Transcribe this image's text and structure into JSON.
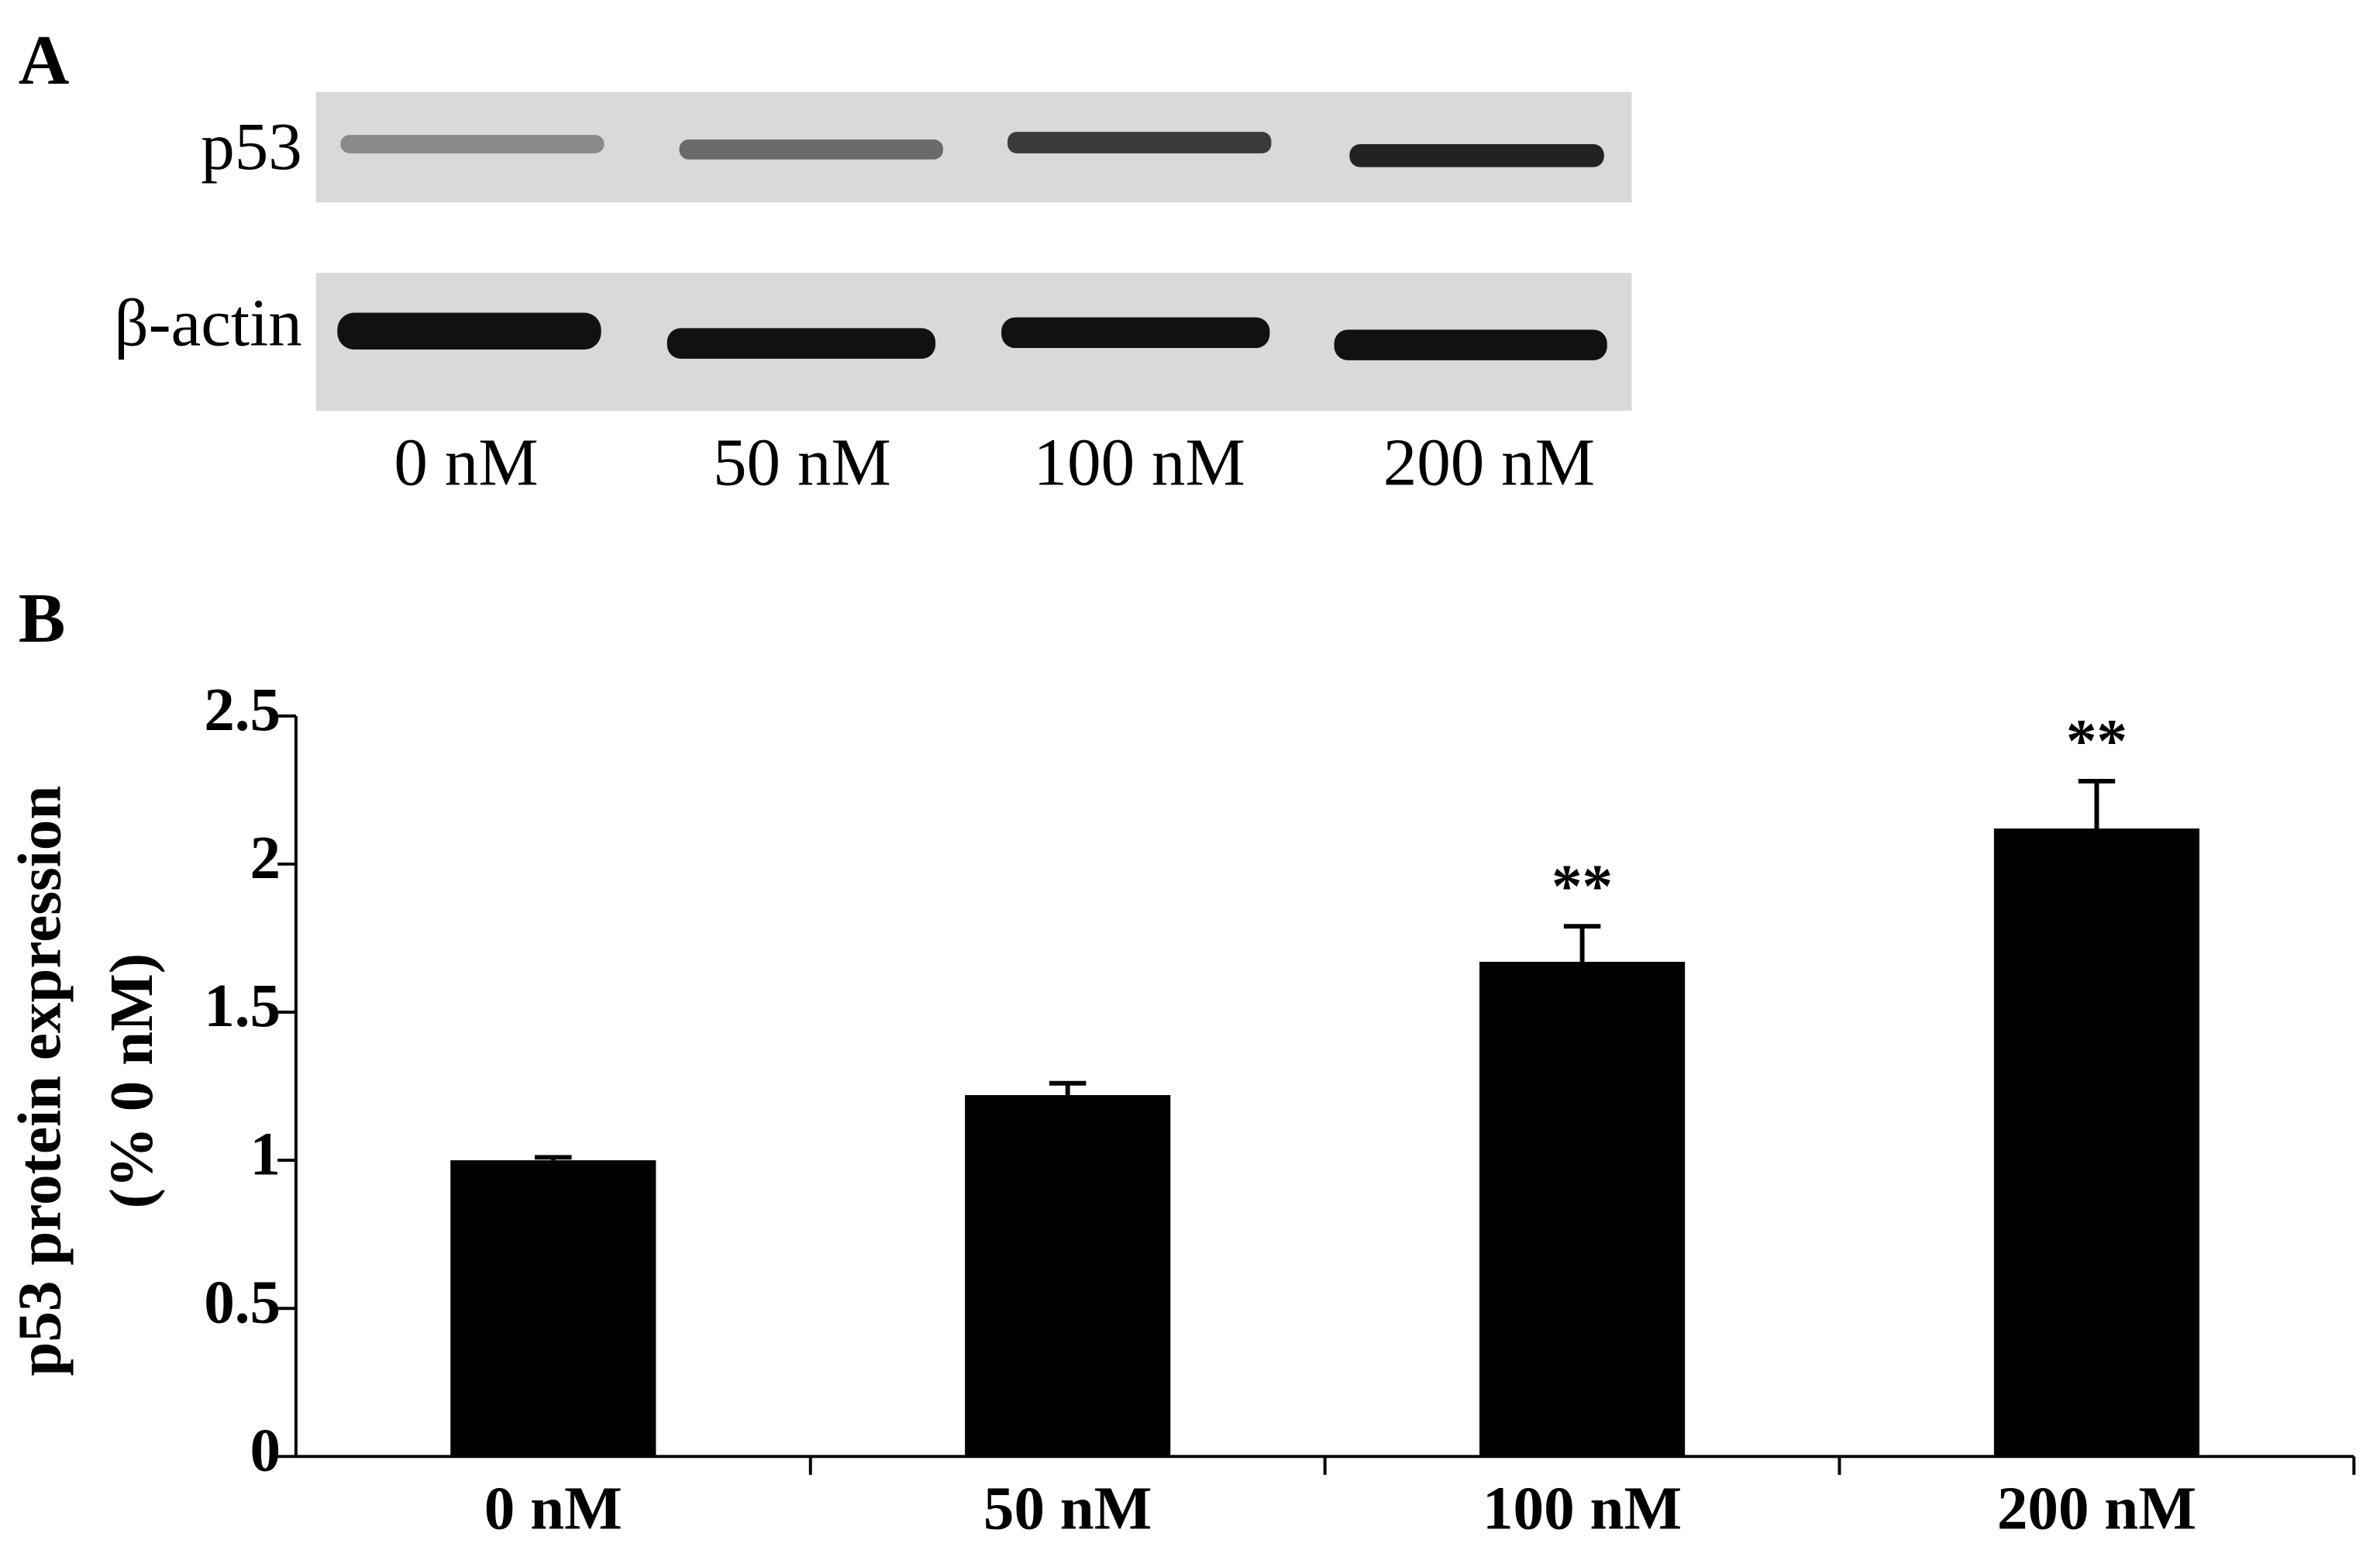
{
  "blot": {
    "panel_label": "A",
    "rows": [
      "p53",
      "β-actin"
    ],
    "lanes": [
      "0 nM",
      "50 nM",
      "100 nM",
      "200 nM"
    ]
  },
  "chart_data": {
    "type": "bar",
    "panel_label": "B",
    "y_label": [
      "p53 protein expression",
      "(% 0  nM)"
    ],
    "categories": [
      "0 nM",
      "50 nM",
      "100 nM",
      "200 nM"
    ],
    "values": [
      1.0,
      1.22,
      1.67,
      2.12
    ],
    "errors": [
      0.01,
      0.04,
      0.12,
      0.16
    ],
    "significance": [
      null,
      null,
      "**",
      "**"
    ],
    "color": "#000000",
    "ylim": [
      0,
      2.5
    ],
    "yticks": [
      0,
      0.5,
      1,
      1.5,
      2,
      2.5
    ]
  }
}
